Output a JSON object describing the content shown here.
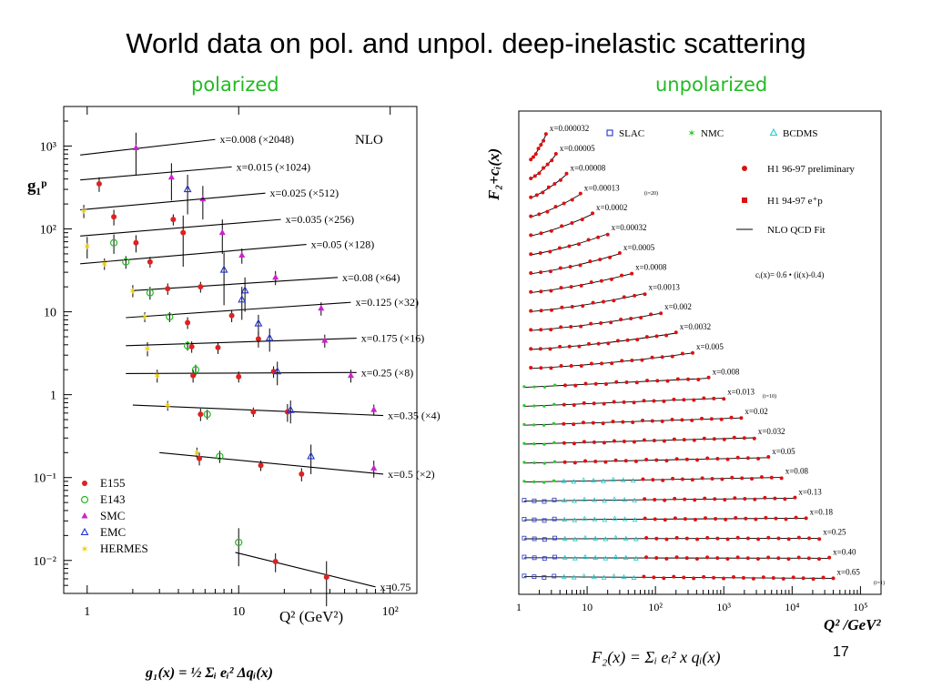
{
  "slide": {
    "title": "World data on pol. and unpol. deep-inelastic scattering",
    "subtitle_polarized": "polarized",
    "subtitle_unpolarized": "unpolarized",
    "page_number": "17",
    "formula_left": "g₁(x) = ½ Σᵢ eᵢ² Δqᵢ(x)",
    "formula_right": "F₂(x) = Σᵢ eᵢ² x qᵢ(x)",
    "colors": {
      "subtitle": "#22bb22"
    }
  },
  "chart_data": [
    {
      "type": "scatter",
      "title": "",
      "corner_label": "NLO",
      "xlabel": "Q² (GeV²)",
      "ylabel": "g₁ᵖ",
      "x_scale": "log",
      "y_scale": "log",
      "xlim": [
        0.7,
        150
      ],
      "ylim": [
        0.004,
        3000
      ],
      "x_tick_labels": [
        "1",
        "10",
        "10²"
      ],
      "y_tick_labels": [
        "10⁻²",
        "10⁻¹",
        "1",
        "10",
        "10²",
        "10³"
      ],
      "legend": {
        "placement": "bottom-left",
        "entries": [
          {
            "name": "E155",
            "marker": "dot",
            "color": "#dd2222"
          },
          {
            "name": "E143",
            "marker": "circle",
            "color": "#22bb22"
          },
          {
            "name": "SMC",
            "marker": "triangle-filled",
            "color": "#cc22cc"
          },
          {
            "name": "EMC",
            "marker": "triangle-open",
            "color": "#2233cc"
          },
          {
            "name": "HERMES",
            "marker": "star",
            "color": "#eecc00"
          }
        ]
      },
      "bins": [
        {
          "label": "x=0.008 (×2048)",
          "fit": [
            [
              0.9,
              780
            ],
            [
              7,
              1200
            ]
          ],
          "points": [
            {
              "exp": "E155",
              "q2": 1.2,
              "y": 350,
              "err": 70
            },
            {
              "exp": "SMC",
              "q2": 2.1,
              "y": 950,
              "err": 500
            }
          ]
        },
        {
          "label": "x=0.015 (×1024)",
          "fit": [
            [
              0.9,
              390
            ],
            [
              9,
              560
            ]
          ],
          "points": [
            {
              "exp": "SMC",
              "q2": 3.6,
              "y": 420,
              "err": 200
            },
            {
              "exp": "EMC",
              "q2": 4.6,
              "y": 300,
              "err": 150
            },
            {
              "exp": "SMC",
              "q2": 5.8,
              "y": 230,
              "err": 100
            }
          ]
        },
        {
          "label": "x=0.025 (×512)",
          "fit": [
            [
              0.9,
              170
            ],
            [
              15,
              270
            ]
          ],
          "points": [
            {
              "exp": "HERMES",
              "q2": 0.95,
              "y": 165,
              "err": 30
            },
            {
              "exp": "E155",
              "q2": 1.5,
              "y": 140,
              "err": 30
            },
            {
              "exp": "E155",
              "q2": 3.7,
              "y": 130,
              "err": 20
            }
          ]
        },
        {
          "label": "x=0.035 (×256)",
          "fit": [
            [
              0.9,
              82
            ],
            [
              19,
              130
            ]
          ],
          "points": [
            {
              "exp": "HERMES",
              "q2": 1.0,
              "y": 62,
              "err": 18
            },
            {
              "exp": "E143",
              "q2": 1.5,
              "y": 68,
              "err": 18
            },
            {
              "exp": "E155",
              "q2": 2.1,
              "y": 68,
              "err": 16
            },
            {
              "exp": "E155",
              "q2": 4.3,
              "y": 90,
              "err": 55
            },
            {
              "exp": "SMC",
              "q2": 7.8,
              "y": 90,
              "err": 40
            }
          ]
        },
        {
          "label": "x=0.05 (×128)",
          "fit": [
            [
              0.9,
              38
            ],
            [
              28,
              65
            ]
          ],
          "points": [
            {
              "exp": "HERMES",
              "q2": 1.3,
              "y": 38,
              "err": 6
            },
            {
              "exp": "E143",
              "q2": 1.8,
              "y": 40,
              "err": 7
            },
            {
              "exp": "E155",
              "q2": 2.6,
              "y": 40,
              "err": 6
            },
            {
              "exp": "EMC",
              "q2": 8.0,
              "y": 32,
              "err": 20
            },
            {
              "exp": "SMC",
              "q2": 10.5,
              "y": 48,
              "err": 10
            }
          ]
        },
        {
          "label": "x=0.08 (×64)",
          "fit": [
            [
              2,
              18
            ],
            [
              45,
              26
            ]
          ],
          "points": [
            {
              "exp": "HERMES",
              "q2": 2.0,
              "y": 18,
              "err": 3
            },
            {
              "exp": "E143",
              "q2": 2.6,
              "y": 17,
              "err": 3
            },
            {
              "exp": "E155",
              "q2": 3.4,
              "y": 19,
              "err": 3
            },
            {
              "exp": "E155",
              "q2": 5.6,
              "y": 20,
              "err": 3
            },
            {
              "exp": "EMC",
              "q2": 11.0,
              "y": 18,
              "err": 8
            },
            {
              "exp": "SMC",
              "q2": 17.5,
              "y": 26,
              "err": 5
            }
          ]
        },
        {
          "label": "x=0.125 (×32)",
          "fit": [
            [
              1.8,
              8.5
            ],
            [
              55,
              13
            ]
          ],
          "points": [
            {
              "exp": "HERMES",
              "q2": 2.4,
              "y": 8.7,
              "err": 1.2
            },
            {
              "exp": "E143",
              "q2": 3.5,
              "y": 8.7,
              "err": 1.2
            },
            {
              "exp": "E155",
              "q2": 4.6,
              "y": 7.4,
              "err": 1.2
            },
            {
              "exp": "E155",
              "q2": 9.0,
              "y": 9.0,
              "err": 1.5
            },
            {
              "exp": "E155",
              "q2": 13.5,
              "y": 4.7,
              "err": 1.0
            },
            {
              "exp": "EMC",
              "q2": 10.5,
              "y": 14.0,
              "err": 6.0
            },
            {
              "exp": "SMC",
              "q2": 35.0,
              "y": 11.0,
              "err": 2.0
            }
          ]
        },
        {
          "label": "x=0.175 (×16)",
          "fit": [
            [
              1.8,
              3.9
            ],
            [
              60,
              4.8
            ]
          ],
          "points": [
            {
              "exp": "HERMES",
              "q2": 2.5,
              "y": 3.6,
              "err": 0.7
            },
            {
              "exp": "E143",
              "q2": 4.6,
              "y": 3.9,
              "err": 0.5
            },
            {
              "exp": "E155",
              "q2": 4.9,
              "y": 3.8,
              "err": 0.6
            },
            {
              "exp": "E155",
              "q2": 7.3,
              "y": 3.7,
              "err": 0.6
            },
            {
              "exp": "EMC",
              "q2": 13.5,
              "y": 7.2,
              "err": 2.0
            },
            {
              "exp": "EMC",
              "q2": 16.0,
              "y": 4.8,
              "err": 1.5
            },
            {
              "exp": "SMC",
              "q2": 37.0,
              "y": 4.5,
              "err": 0.8
            }
          ]
        },
        {
          "label": "x=0.25 (×8)",
          "fit": [
            [
              1.8,
              1.8
            ],
            [
              60,
              1.85
            ]
          ],
          "points": [
            {
              "exp": "HERMES",
              "q2": 2.9,
              "y": 1.7,
              "err": 0.3
            },
            {
              "exp": "E143",
              "q2": 5.2,
              "y": 2.0,
              "err": 0.3
            },
            {
              "exp": "E155",
              "q2": 5.0,
              "y": 1.7,
              "err": 0.3
            },
            {
              "exp": "E155",
              "q2": 10.0,
              "y": 1.65,
              "err": 0.25
            },
            {
              "exp": "E155",
              "q2": 17.0,
              "y": 1.9,
              "err": 0.3
            },
            {
              "exp": "EMC",
              "q2": 18.0,
              "y": 1.9,
              "err": 0.6
            },
            {
              "exp": "SMC",
              "q2": 55.0,
              "y": 1.7,
              "err": 0.3
            }
          ]
        },
        {
          "label": "x=0.35 (×4)",
          "fit": [
            [
              2.0,
              0.75
            ],
            [
              90,
              0.56
            ]
          ],
          "points": [
            {
              "exp": "HERMES",
              "q2": 3.4,
              "y": 0.74,
              "err": 0.1
            },
            {
              "exp": "E155",
              "q2": 5.6,
              "y": 0.58,
              "err": 0.1
            },
            {
              "exp": "E143",
              "q2": 6.2,
              "y": 0.58,
              "err": 0.08
            },
            {
              "exp": "E155",
              "q2": 12.5,
              "y": 0.62,
              "err": 0.08
            },
            {
              "exp": "E155",
              "q2": 21.0,
              "y": 0.62,
              "err": 0.15
            },
            {
              "exp": "EMC",
              "q2": 22.0,
              "y": 0.65,
              "err": 0.2
            },
            {
              "exp": "SMC",
              "q2": 78.0,
              "y": 0.66,
              "err": 0.1
            }
          ]
        },
        {
          "label": "x=0.5 (×2)",
          "fit": [
            [
              3.0,
              0.2
            ],
            [
              90,
              0.11
            ]
          ],
          "points": [
            {
              "exp": "HERMES",
              "q2": 5.3,
              "y": 0.2,
              "err": 0.03
            },
            {
              "exp": "E155",
              "q2": 5.5,
              "y": 0.17,
              "err": 0.03
            },
            {
              "exp": "E143",
              "q2": 7.5,
              "y": 0.18,
              "err": 0.03
            },
            {
              "exp": "E155",
              "q2": 14.0,
              "y": 0.14,
              "err": 0.02
            },
            {
              "exp": "E155",
              "q2": 26.0,
              "y": 0.11,
              "err": 0.02
            },
            {
              "exp": "EMC",
              "q2": 30.0,
              "y": 0.18,
              "err": 0.07
            },
            {
              "exp": "SMC",
              "q2": 78.0,
              "y": 0.13,
              "err": 0.03
            }
          ]
        },
        {
          "label": "x=0.75",
          "fit": [
            [
              9.5,
              0.0125
            ],
            [
              80,
              0.0048
            ]
          ],
          "points": [
            {
              "exp": "E143",
              "q2": 10.0,
              "y": 0.0165,
              "err": 0.008
            },
            {
              "exp": "E155",
              "q2": 17.5,
              "y": 0.0097,
              "err": 0.0025
            },
            {
              "exp": "E155",
              "q2": 38.0,
              "y": 0.0063,
              "err": 0.0035
            }
          ]
        }
      ]
    },
    {
      "type": "scatter",
      "title": "",
      "xlabel": "Q² /GeV²",
      "ylabel": "F₂+cᵢ(x)",
      "x_scale": "log",
      "xlim": [
        1,
        200000
      ],
      "x_tick_labels": [
        "1",
        "10",
        "10²",
        "10³",
        "10⁴",
        "10⁵"
      ],
      "annotation": "cᵢ(x)= 0.6 • (i(x)-0.4)",
      "small_notes": [
        "(i=20)",
        "(i=10)",
        "(i=1)"
      ],
      "legend": {
        "placement": "top-right",
        "entries": [
          {
            "name": "SLAC",
            "marker": "square-open",
            "color": "#2233cc"
          },
          {
            "name": "NMC",
            "marker": "star",
            "color": "#22cc22"
          },
          {
            "name": "BCDMS",
            "marker": "triangle-open",
            "color": "#22cccc"
          },
          {
            "name": "H1 96-97 preliminary",
            "marker": "dot",
            "color": "#dd1111"
          },
          {
            "name": "H1 94-97 e⁺p",
            "marker": "square-filled",
            "color": "#dd1111"
          },
          {
            "name": "NLO QCD Fit",
            "marker": "line",
            "color": "#000000"
          }
        ]
      },
      "bins": [
        {
          "label": "x=0.000032",
          "qmin": 1.5,
          "qmax": 2.5
        },
        {
          "label": "x=0.00005",
          "qmin": 1.5,
          "qmax": 3.5
        },
        {
          "label": "x=0.00008",
          "qmin": 1.5,
          "qmax": 5.0
        },
        {
          "label": "x=0.00013",
          "qmin": 1.5,
          "qmax": 8.0
        },
        {
          "label": "x=0.0002",
          "qmin": 1.5,
          "qmax": 12
        },
        {
          "label": "x=0.00032",
          "qmin": 1.5,
          "qmax": 20
        },
        {
          "label": "x=0.0005",
          "qmin": 1.5,
          "qmax": 30
        },
        {
          "label": "x=0.0008",
          "qmin": 1.5,
          "qmax": 45
        },
        {
          "label": "x=0.0013",
          "qmin": 1.5,
          "qmax": 70
        },
        {
          "label": "x=0.002",
          "qmin": 1.5,
          "qmax": 120
        },
        {
          "label": "x=0.0032",
          "qmin": 1.5,
          "qmax": 200
        },
        {
          "label": "x=0.005",
          "qmin": 1.5,
          "qmax": 350
        },
        {
          "label": "x=0.008",
          "qmin": 1.2,
          "qmax": 600
        },
        {
          "label": "x=0.013",
          "qmin": 1.2,
          "qmax": 1000
        },
        {
          "label": "x=0.02",
          "qmin": 1.2,
          "qmax": 1800
        },
        {
          "label": "x=0.032",
          "qmin": 1.2,
          "qmax": 2800
        },
        {
          "label": "x=0.05",
          "qmin": 1.2,
          "qmax": 4500
        },
        {
          "label": "x=0.08",
          "qmin": 1.2,
          "qmax": 7000
        },
        {
          "label": "x=0.13",
          "qmin": 1.2,
          "qmax": 11000
        },
        {
          "label": "x=0.18",
          "qmin": 1.2,
          "qmax": 16000
        },
        {
          "label": "x=0.25",
          "qmin": 1.2,
          "qmax": 25000
        },
        {
          "label": "x=0.40",
          "qmin": 1.2,
          "qmax": 35000
        },
        {
          "label": "x=0.65",
          "qmin": 1.2,
          "qmax": 40000
        }
      ]
    }
  ]
}
